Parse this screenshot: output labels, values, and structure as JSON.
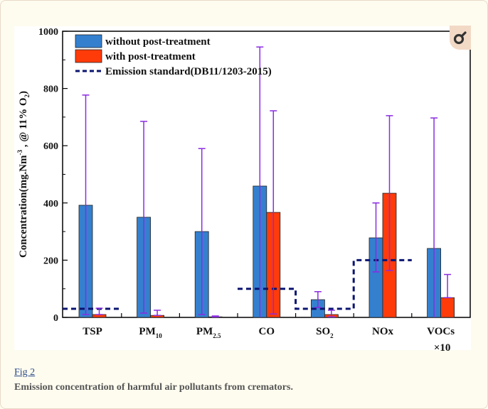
{
  "figure": {
    "link_label": "Fig 2",
    "caption": "Emission concentration of harmful air pollutants from cremators.",
    "zoom_icon": "magnify-icon"
  },
  "chart_data": {
    "type": "bar",
    "title": "",
    "xlabel": "",
    "ylabel": "Concentration(mg.Nm-3 , @ 11% O2)",
    "ylim": [
      0,
      1000
    ],
    "yticks": [
      0,
      200,
      400,
      600,
      800,
      1000
    ],
    "categories": [
      "TSP",
      "PM10",
      "PM2.5",
      "CO",
      "SO2",
      "NOx",
      "VOCs ×10"
    ],
    "category_labels": [
      {
        "main": "TSP",
        "sub": ""
      },
      {
        "main": "PM",
        "sub": "10"
      },
      {
        "main": "PM",
        "sub": "2.5"
      },
      {
        "main": "CO",
        "sub": ""
      },
      {
        "main": "SO",
        "sub": "2"
      },
      {
        "main": "NOx",
        "sub": ""
      },
      {
        "main": "VOCs",
        "sub": "",
        "line2": "×10"
      }
    ],
    "series": [
      {
        "name": "without post-treatment",
        "color": "#3480cf",
        "values": [
          392,
          350,
          300,
          459,
          62,
          278,
          241
        ],
        "err_low": [
          10,
          15,
          10,
          0,
          35,
          159,
          0
        ],
        "err_high": [
          777,
          685,
          590,
          945,
          90,
          400,
          697
        ]
      },
      {
        "name": "with post-treatment",
        "color": "#ff3b0a",
        "values": [
          10,
          7,
          2,
          367,
          10,
          434,
          69
        ],
        "err_low": [
          10,
          7,
          2,
          12,
          2,
          164,
          69
        ],
        "err_high": [
          32,
          25,
          5,
          722,
          25,
          705,
          150
        ]
      }
    ],
    "standard": {
      "name": "Emission standard(DB11/1203-2015)",
      "color": "#0a1470",
      "values": [
        30,
        null,
        null,
        100,
        30,
        200,
        null
      ]
    },
    "error_bar_color": "#8a2be2",
    "legend_position": "top-left",
    "grid": false
  }
}
